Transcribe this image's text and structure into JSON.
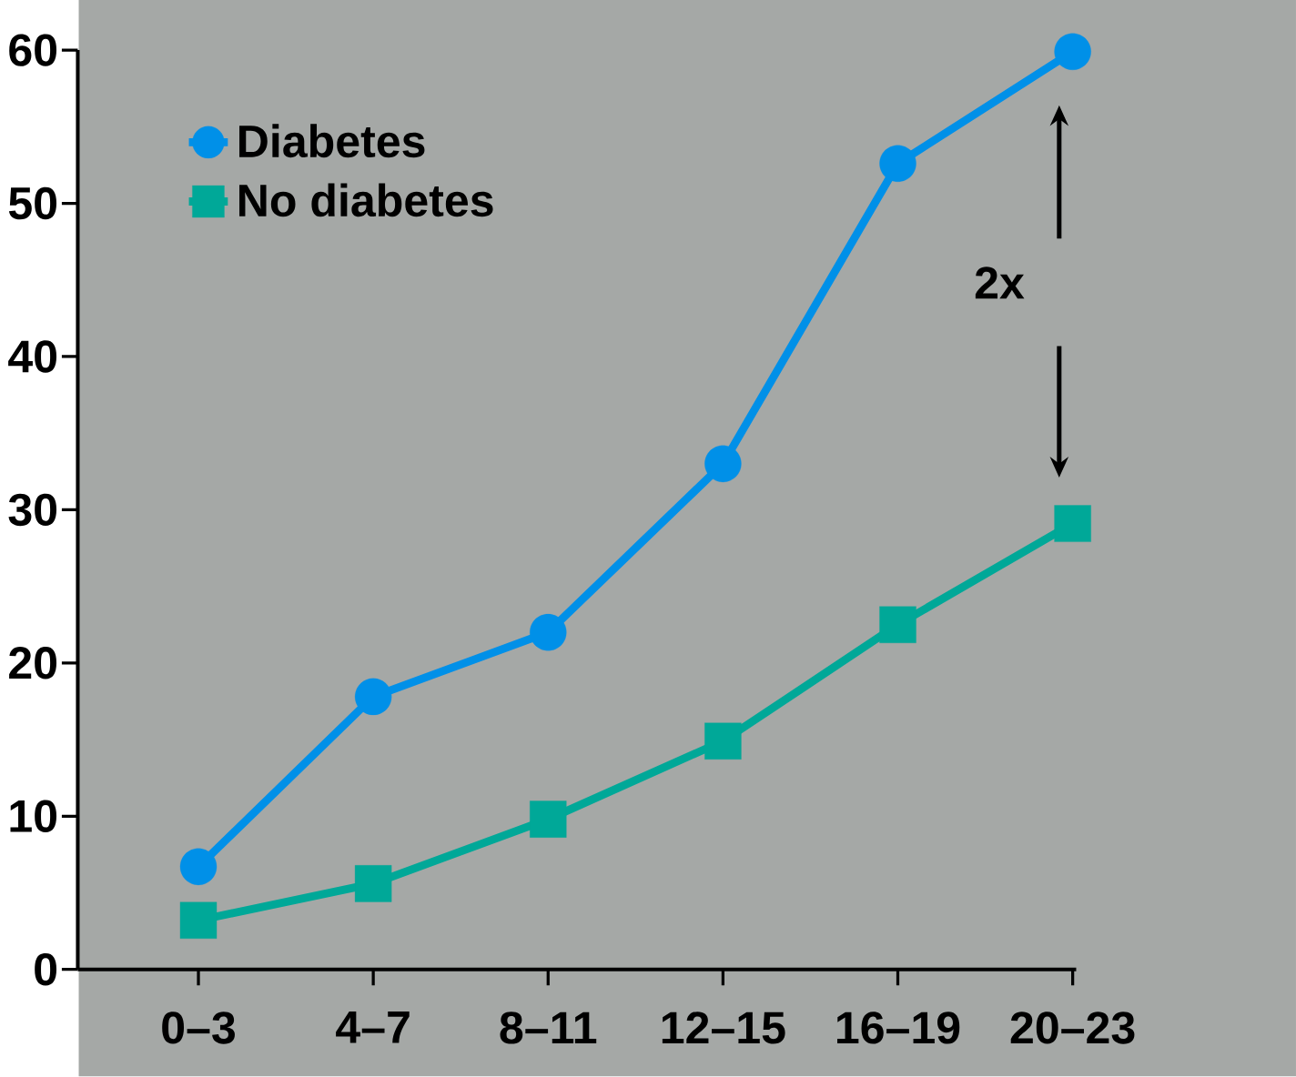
{
  "chart_data": {
    "type": "line",
    "categories": [
      "0–3",
      "4–7",
      "8–11",
      "12–15",
      "16–19",
      "20–23"
    ],
    "series": [
      {
        "name": "Diabetes",
        "color": "#0090e8",
        "marker": "circle",
        "values": [
          6.7,
          17.8,
          22.0,
          33.0,
          52.6,
          59.9
        ]
      },
      {
        "name": "No diabetes",
        "color": "#00a898",
        "marker": "square",
        "values": [
          3.2,
          5.6,
          9.8,
          14.9,
          22.5,
          29.1
        ]
      }
    ],
    "ylim": [
      0,
      60
    ],
    "yticks": [
      0,
      10,
      20,
      30,
      40,
      50,
      60
    ],
    "legend": "top left",
    "grid": false,
    "annotations": [
      "2x"
    ]
  }
}
